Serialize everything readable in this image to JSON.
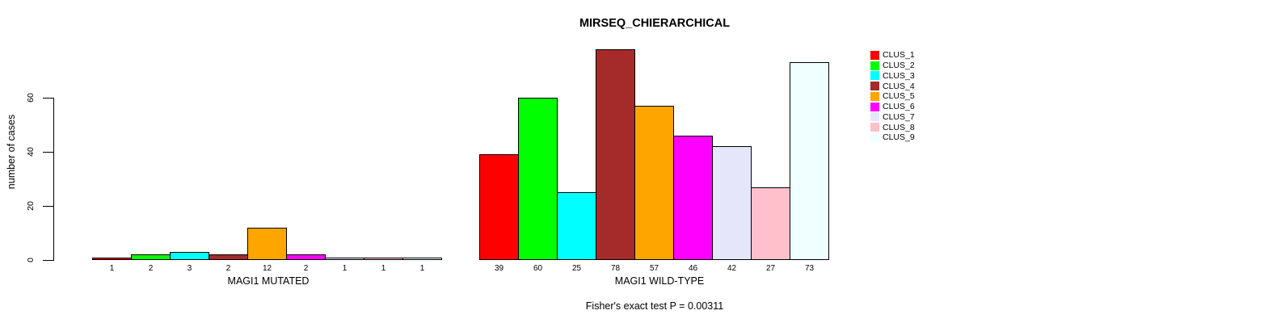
{
  "title": "MIRSEQ_CHIERARCHICAL",
  "chart_data": {
    "type": "bar",
    "title": "MIRSEQ_CHIERARCHICAL",
    "ylabel": "number of cases",
    "ylim": [
      0,
      78
    ],
    "yticks": [
      0,
      20,
      40,
      60
    ],
    "grid": false,
    "legend_position": "top-right",
    "legend_entries": [
      "CLUS_1",
      "CLUS_2",
      "CLUS_3",
      "CLUS_4",
      "CLUS_5",
      "CLUS_6",
      "CLUS_7",
      "CLUS_8",
      "CLUS_9"
    ],
    "clusters": [
      {
        "name": "CLUS_1",
        "color": "#FF0000"
      },
      {
        "name": "CLUS_2",
        "color": "#00FF00"
      },
      {
        "name": "CLUS_3",
        "color": "#00FFFF"
      },
      {
        "name": "CLUS_4",
        "color": "#A52A2A"
      },
      {
        "name": "CLUS_5",
        "color": "#FFA500"
      },
      {
        "name": "CLUS_6",
        "color": "#FF00FF"
      },
      {
        "name": "CLUS_7",
        "color": "#E6E6FA"
      },
      {
        "name": "CLUS_8",
        "color": "#FFC0CB"
      },
      {
        "name": "CLUS_9",
        "color": "#F0FFFF"
      }
    ],
    "groups": [
      {
        "label": "MAGI1 MUTATED",
        "values": [
          1,
          2,
          3,
          2,
          12,
          2,
          1,
          1,
          1
        ]
      },
      {
        "label": "MAGI1 WILD-TYPE",
        "values": [
          39,
          60,
          25,
          78,
          57,
          46,
          42,
          27,
          73
        ]
      }
    ],
    "caption": "Fisher's exact test P = 0.00311",
    "bar_outline_color": "#000000",
    "background_color": "#FFFFFF"
  }
}
